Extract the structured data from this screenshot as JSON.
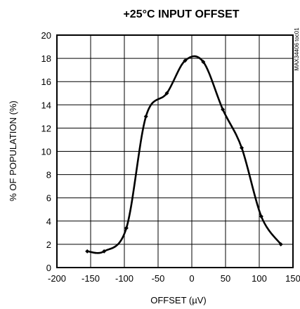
{
  "chart_data": {
    "type": "line",
    "title": "+25°C INPUT OFFSET",
    "xlabel": "OFFSET (µV)",
    "ylabel": "% OF POPULATION (%)",
    "side_tag": "MAX34406 toc01",
    "xlim": [
      -200,
      150
    ],
    "ylim": [
      0,
      20
    ],
    "x_ticks": [
      -200,
      -150,
      -100,
      -50,
      0,
      50,
      100,
      150
    ],
    "y_ticks": [
      0,
      2,
      4,
      6,
      8,
      10,
      12,
      14,
      16,
      18,
      20
    ],
    "grid": true,
    "series": [
      {
        "color": "#000000",
        "x": [
          -155,
          -130,
          -97,
          -68,
          -37,
          -10,
          17,
          46,
          74,
          103,
          132
        ],
        "y": [
          1.4,
          1.4,
          3.4,
          13.0,
          15.0,
          17.8,
          17.7,
          13.6,
          10.3,
          4.4,
          2.0
        ]
      }
    ]
  }
}
